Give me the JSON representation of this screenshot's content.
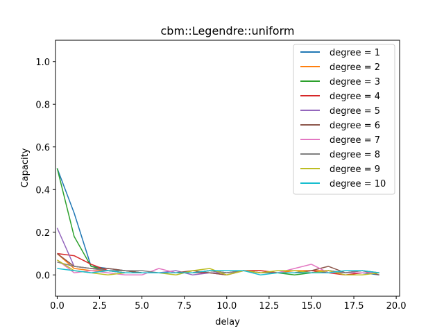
{
  "chart_data": {
    "type": "line",
    "title": "cbm::Legendre::uniform",
    "xlabel": "delay",
    "ylabel": "Capacity",
    "xlim": [
      -0.1,
      20.2
    ],
    "ylim": [
      -0.1,
      1.1
    ],
    "xticks": [
      "0.0",
      "2.5",
      "5.0",
      "7.5",
      "10.0",
      "12.5",
      "15.0",
      "17.5",
      "20.0"
    ],
    "yticks": [
      "0.0",
      "0.2",
      "0.4",
      "0.6",
      "0.8",
      "1.0"
    ],
    "legend_position": "top-right",
    "grid": false,
    "x": [
      0,
      1,
      2,
      3,
      4,
      5,
      6,
      7,
      8,
      9,
      10,
      11,
      12,
      13,
      14,
      15,
      16,
      17,
      18,
      19
    ],
    "series": [
      {
        "name": "degree = 1",
        "color": "#1f77b4",
        "values": [
          0.5,
          0.29,
          0.04,
          0.03,
          0.02,
          0.01,
          0.01,
          0.01,
          0.01,
          0.02,
          0.01,
          0.02,
          0.01,
          0.01,
          0.01,
          0.01,
          0.02,
          0.01,
          0.01,
          0.0
        ]
      },
      {
        "name": "degree = 2",
        "color": "#ff7f0e",
        "values": [
          0.1,
          0.03,
          0.02,
          0.02,
          0.01,
          0.01,
          0.01,
          0.01,
          0.01,
          0.02,
          0.01,
          0.02,
          0.02,
          0.01,
          0.02,
          0.02,
          0.02,
          0.01,
          0.01,
          0.01
        ]
      },
      {
        "name": "degree = 3",
        "color": "#2ca02c",
        "values": [
          0.5,
          0.18,
          0.04,
          0.02,
          0.02,
          0.01,
          0.01,
          0.01,
          0.01,
          0.02,
          0.01,
          0.02,
          0.01,
          0.01,
          0.0,
          0.01,
          0.02,
          0.01,
          0.01,
          0.01
        ]
      },
      {
        "name": "degree = 4",
        "color": "#d62728",
        "values": [
          0.1,
          0.09,
          0.05,
          0.02,
          0.01,
          0.01,
          0.01,
          0.01,
          0.01,
          0.01,
          0.0,
          0.02,
          0.02,
          0.01,
          0.01,
          0.02,
          0.01,
          0.0,
          0.01,
          0.01
        ]
      },
      {
        "name": "degree = 5",
        "color": "#9467bd",
        "values": [
          0.22,
          0.04,
          0.03,
          0.02,
          0.01,
          0.01,
          0.01,
          0.02,
          0.0,
          0.01,
          0.01,
          0.02,
          0.01,
          0.01,
          0.01,
          0.01,
          0.02,
          0.01,
          0.02,
          0.01
        ]
      },
      {
        "name": "degree = 6",
        "color": "#8c564b",
        "values": [
          0.1,
          0.04,
          0.03,
          0.03,
          0.02,
          0.01,
          0.01,
          0.01,
          0.02,
          0.01,
          0.0,
          0.02,
          0.01,
          0.01,
          0.01,
          0.02,
          0.04,
          0.01,
          0.02,
          0.0
        ]
      },
      {
        "name": "degree = 7",
        "color": "#e377c2",
        "values": [
          0.07,
          0.01,
          0.02,
          0.01,
          0.0,
          0.0,
          0.03,
          0.01,
          0.01,
          0.02,
          0.01,
          0.02,
          0.01,
          0.01,
          0.03,
          0.05,
          0.01,
          0.01,
          0.01,
          0.01
        ]
      },
      {
        "name": "degree = 8",
        "color": "#7f7f7f",
        "values": [
          0.06,
          0.04,
          0.03,
          0.02,
          0.02,
          0.02,
          0.01,
          0.01,
          0.01,
          0.02,
          0.01,
          0.02,
          0.01,
          0.01,
          0.01,
          0.01,
          0.02,
          0.01,
          0.02,
          0.01
        ]
      },
      {
        "name": "degree = 9",
        "color": "#bcbd22",
        "values": [
          0.07,
          0.02,
          0.01,
          0.0,
          0.01,
          0.01,
          0.01,
          0.0,
          0.02,
          0.03,
          0.0,
          0.02,
          0.01,
          0.02,
          0.02,
          0.01,
          0.02,
          0.0,
          0.0,
          0.01
        ]
      },
      {
        "name": "degree = 10",
        "color": "#17becf",
        "values": [
          0.03,
          0.02,
          0.01,
          0.02,
          0.01,
          0.01,
          0.01,
          0.01,
          0.01,
          0.02,
          0.02,
          0.02,
          0.0,
          0.01,
          0.01,
          0.01,
          0.01,
          0.02,
          0.02,
          0.01
        ]
      }
    ]
  }
}
